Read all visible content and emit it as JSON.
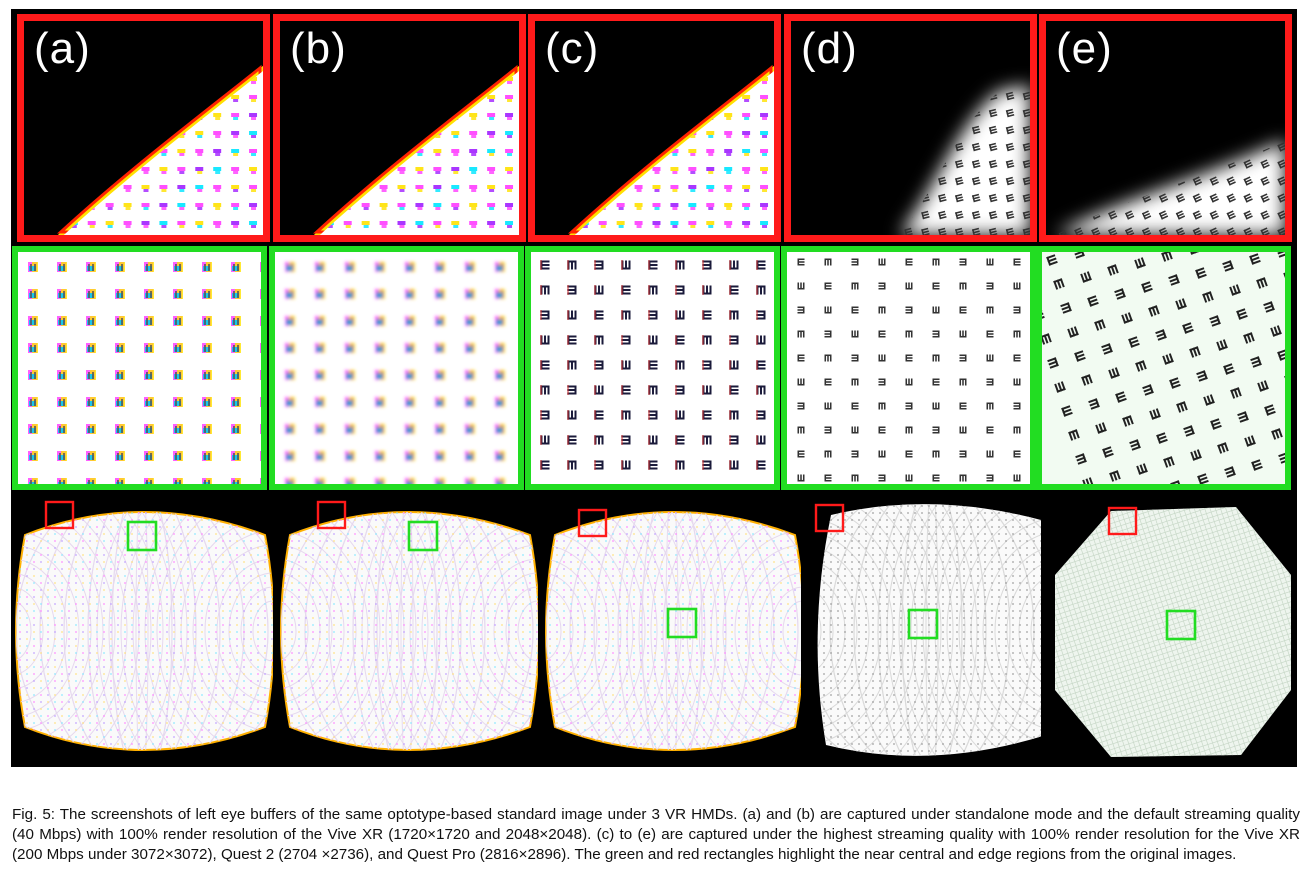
{
  "figure": {
    "panels": [
      {
        "id": "a",
        "label": "(a)",
        "style": "color-fringed",
        "edge": "sharp"
      },
      {
        "id": "b",
        "label": "(b)",
        "style": "color-fringed-blurred",
        "edge": "sharp"
      },
      {
        "id": "c",
        "label": "(c)",
        "style": "dark-clear",
        "edge": "sharp"
      },
      {
        "id": "d",
        "label": "(d)",
        "style": "grey-clear",
        "edge": "blurred"
      },
      {
        "id": "e",
        "label": "(e)",
        "style": "rotated-clear",
        "edge": "blurred"
      }
    ],
    "colors": {
      "edge_box": "#ff1a1a",
      "center_box": "#22dd22",
      "background": "#000000"
    }
  },
  "caption": {
    "text": "Fig. 5: The screenshots of left eye buffers of the same optotype-based standard image under 3 VR HMDs. (a) and (b) are captured under standalone mode and the default streaming quality (40 Mbps) with 100% render resolution of the Vive XR (1720×1720 and 2048×2048). (c) to (e) are captured under the highest streaming quality with 100% render resolution for the Vive XR (200 Mbps under 3072×3072), Quest 2 (2704 ×2736), and Quest Pro (2816×2896). The green and red rectangles highlight the near central and edge regions from the original images."
  }
}
